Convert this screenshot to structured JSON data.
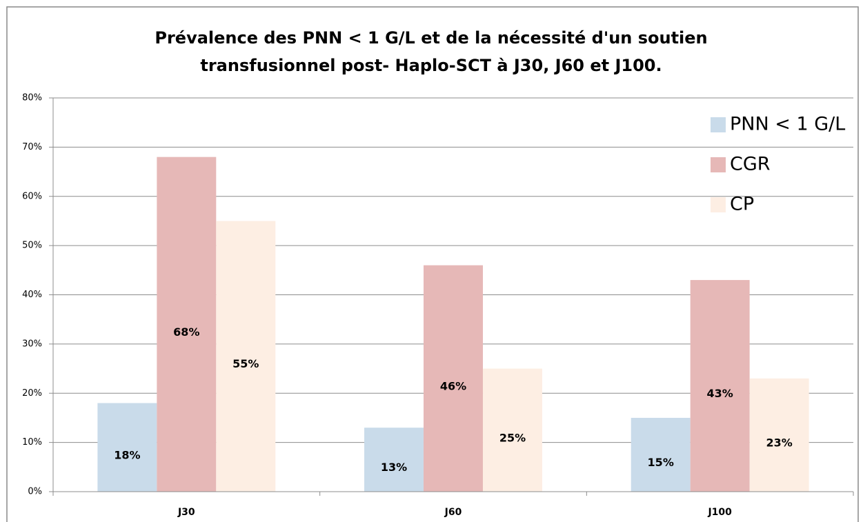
{
  "chart_data": {
    "type": "bar",
    "title": [
      "Prévalence des PNN < 1 G/L et de la nécessité d'un soutien",
      "transfusionnel post- Haplo-SCT à J30, J60 et J100."
    ],
    "categories": [
      "J30",
      "J60",
      "J100"
    ],
    "series": [
      {
        "name": "PNN < 1 G/L",
        "color": "#c9dbea",
        "values": [
          18,
          13,
          15
        ],
        "value_labels": [
          "18%",
          "13%",
          "15%"
        ]
      },
      {
        "name": "CGR",
        "color": "#e6b8b7",
        "values": [
          68,
          46,
          43
        ],
        "value_labels": [
          "68%",
          "46%",
          "43%"
        ]
      },
      {
        "name": "CP",
        "color": "#fdeee3",
        "values": [
          55,
          25,
          23
        ],
        "value_labels": [
          "55%",
          "25%",
          "23%"
        ]
      }
    ],
    "ylim": [
      0,
      80
    ],
    "yticks": [
      {
        "value": 0,
        "label": "0%"
      },
      {
        "value": 10,
        "label": "10%"
      },
      {
        "value": 20,
        "label": "20%"
      },
      {
        "value": 30,
        "label": "30%"
      },
      {
        "value": 40,
        "label": "40%"
      },
      {
        "value": 50,
        "label": "50%"
      },
      {
        "value": 60,
        "label": "60%"
      },
      {
        "value": 70,
        "label": "70%"
      },
      {
        "value": 80,
        "label": "80%"
      }
    ],
    "grid": true,
    "legend": "top-right"
  }
}
